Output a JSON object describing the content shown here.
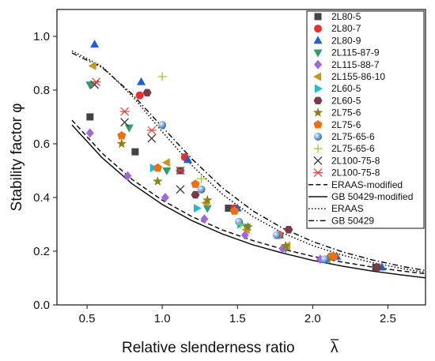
{
  "chart_data": {
    "type": "scatter",
    "xlabel": "Relative slenderness ratio",
    "xlabel_symbol": "λ",
    "ylabel": "Stability factor φ",
    "xlim": [
      0.3,
      2.75
    ],
    "ylim": [
      0.0,
      1.1
    ],
    "xticks": [
      "0.5",
      "1.0",
      "1.5",
      "2.0",
      "2.5"
    ],
    "xtick_values": [
      0.5,
      1.0,
      1.5,
      2.0,
      2.5
    ],
    "yticks": [
      "0.0",
      "0.2",
      "0.4",
      "0.6",
      "0.8",
      "1.0"
    ],
    "ytick_values": [
      0.0,
      0.2,
      0.4,
      0.6,
      0.8,
      1.0
    ],
    "legend_position": "top-right",
    "grid": false,
    "series": [
      {
        "name": "2L80-5",
        "marker": "square",
        "color": "#444444",
        "points": [
          [
            0.52,
            0.7
          ],
          [
            0.82,
            0.57
          ],
          [
            1.12,
            0.5
          ],
          [
            1.44,
            0.36
          ],
          [
            2.42,
            0.14
          ]
        ]
      },
      {
        "name": "2L80-7",
        "marker": "circle",
        "color": "#e8312f",
        "points": [
          [
            0.85,
            0.78
          ],
          [
            1.15,
            0.55
          ],
          [
            1.48,
            0.36
          ],
          [
            1.78,
            0.26
          ],
          [
            2.12,
            0.18
          ]
        ]
      },
      {
        "name": "2L80-9",
        "marker": "triangle-up",
        "color": "#1f5fd6",
        "points": [
          [
            0.55,
            0.97
          ],
          [
            0.86,
            0.83
          ],
          [
            1.17,
            0.54
          ],
          [
            1.5,
            0.36
          ],
          [
            1.78,
            0.26
          ],
          [
            2.16,
            0.18
          ],
          [
            2.46,
            0.14
          ]
        ]
      },
      {
        "name": "2L115-87-9",
        "marker": "triangle-down",
        "color": "#2e9e6a",
        "points": [
          [
            0.52,
            0.82
          ],
          [
            0.78,
            0.66
          ],
          [
            1.03,
            0.5
          ],
          [
            1.3,
            0.36
          ],
          [
            1.56,
            0.29
          ],
          [
            1.82,
            0.21
          ],
          [
            2.1,
            0.17
          ]
        ]
      },
      {
        "name": "2L115-88-7",
        "marker": "diamond",
        "color": "#a367dc",
        "points": [
          [
            0.52,
            0.64
          ],
          [
            0.77,
            0.48
          ],
          [
            1.02,
            0.4
          ],
          [
            1.28,
            0.32
          ],
          [
            1.55,
            0.26
          ],
          [
            1.8,
            0.21
          ],
          [
            2.05,
            0.17
          ]
        ]
      },
      {
        "name": "2L155-86-10",
        "marker": "triangle-left",
        "color": "#c8961e",
        "points": [
          [
            0.54,
            0.89
          ],
          [
            1.03,
            0.53
          ],
          [
            1.29,
            0.38
          ],
          [
            1.56,
            0.28
          ],
          [
            1.83,
            0.22
          ],
          [
            2.11,
            0.18
          ]
        ]
      },
      {
        "name": "2L60-5",
        "marker": "triangle-right",
        "color": "#19bfcf",
        "points": [
          [
            0.94,
            0.51
          ],
          [
            1.23,
            0.36
          ],
          [
            1.52,
            0.3
          ]
        ]
      },
      {
        "name": "2L60-5",
        "marker": "hexagon",
        "color": "#7a3b46",
        "points": [
          [
            0.9,
            0.79
          ],
          [
            1.22,
            0.41
          ],
          [
            1.84,
            0.28
          ],
          [
            2.43,
            0.14
          ]
        ]
      },
      {
        "name": "2L75-6",
        "marker": "star",
        "color": "#8c8218",
        "points": [
          [
            0.73,
            0.6
          ],
          [
            0.97,
            0.46
          ],
          [
            1.3,
            0.39
          ],
          [
            1.57,
            0.29
          ],
          [
            1.82,
            0.22
          ],
          [
            2.1,
            0.17
          ]
        ]
      },
      {
        "name": "2L75-6",
        "marker": "pentagon",
        "color": "#f26d0e",
        "points": [
          [
            0.73,
            0.63
          ],
          [
            0.97,
            0.51
          ],
          [
            1.22,
            0.45
          ],
          [
            1.48,
            0.35
          ],
          [
            1.77,
            0.26
          ],
          [
            2.14,
            0.18
          ]
        ]
      },
      {
        "name": "2L75-65-6",
        "marker": "sphere",
        "color": "#3f7fd0",
        "points": [
          [
            1.0,
            0.67
          ],
          [
            1.26,
            0.43
          ],
          [
            1.51,
            0.31
          ],
          [
            1.76,
            0.26
          ],
          [
            2.08,
            0.17
          ]
        ]
      },
      {
        "name": "2L75-65-6",
        "marker": "plus",
        "color": "#9acd32",
        "points": [
          [
            1.0,
            0.85
          ],
          [
            1.26,
            0.47
          ],
          [
            1.52,
            0.3
          ]
        ]
      },
      {
        "name": "2L100-75-8",
        "marker": "cross",
        "color": "#333333",
        "points": [
          [
            0.55,
            0.82
          ],
          [
            0.75,
            0.68
          ],
          [
            0.93,
            0.62
          ],
          [
            1.12,
            0.43
          ]
        ]
      },
      {
        "name": "2L100-75-8",
        "marker": "asterisk",
        "color": "#e84040",
        "points": [
          [
            0.56,
            0.83
          ],
          [
            0.75,
            0.72
          ],
          [
            0.93,
            0.65
          ],
          [
            1.12,
            0.5
          ]
        ]
      }
    ],
    "lines": [
      {
        "name": "ERAAS-modified",
        "dash": "dash",
        "x": [
          0.4,
          0.6,
          0.8,
          1.0,
          1.2,
          1.4,
          1.6,
          1.8,
          2.0,
          2.2,
          2.4,
          2.6,
          2.75
        ],
        "y": [
          0.688,
          0.565,
          0.467,
          0.39,
          0.328,
          0.279,
          0.24,
          0.208,
          0.181,
          0.159,
          0.141,
          0.126,
          0.116
        ]
      },
      {
        "name": "GB 50429-modified",
        "dash": "solid",
        "x": [
          0.4,
          0.6,
          0.8,
          1.0,
          1.2,
          1.4,
          1.6,
          1.8,
          2.0,
          2.2,
          2.4,
          2.6,
          2.75
        ],
        "y": [
          0.67,
          0.548,
          0.451,
          0.374,
          0.313,
          0.264,
          0.224,
          0.193,
          0.166,
          0.144,
          0.126,
          0.111,
          0.101
        ]
      },
      {
        "name": "ERAAS",
        "dash": "dot",
        "x": [
          0.4,
          0.6,
          0.8,
          1.0,
          1.2,
          1.4,
          1.6,
          1.8,
          2.0,
          2.2,
          2.4,
          2.6,
          2.75
        ],
        "y": [
          0.946,
          0.888,
          0.778,
          0.645,
          0.518,
          0.412,
          0.33,
          0.268,
          0.221,
          0.185,
          0.157,
          0.135,
          0.121
        ]
      },
      {
        "name": "GB 50429",
        "dash": "dashdot",
        "x": [
          0.4,
          0.6,
          0.8,
          1.0,
          1.2,
          1.4,
          1.6,
          1.8,
          2.0,
          2.2,
          2.4,
          2.6,
          2.75
        ],
        "y": [
          0.938,
          0.884,
          0.785,
          0.663,
          0.542,
          0.436,
          0.351,
          0.286,
          0.236,
          0.197,
          0.167,
          0.143,
          0.128
        ]
      }
    ]
  }
}
